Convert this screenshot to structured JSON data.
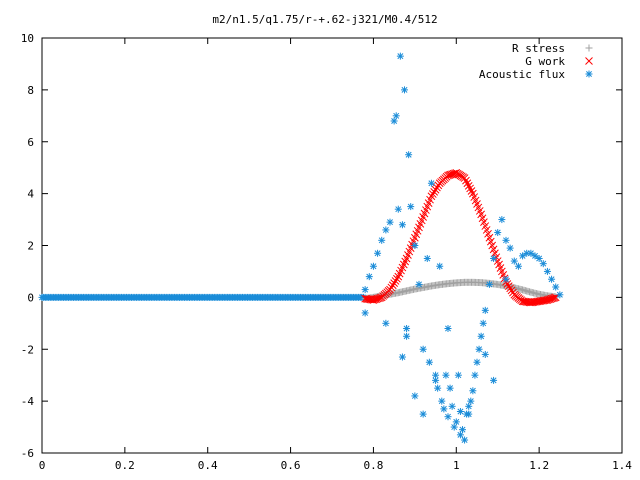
{
  "chart_data": {
    "type": "scatter",
    "title": "m2/n1.5/q1.75/r-+.62-j321/M0.4/512",
    "xlabel": "",
    "ylabel": "",
    "xlim": [
      0,
      1.4
    ],
    "ylim": [
      -6,
      10
    ],
    "xticks": [
      "0",
      "0.2",
      "0.4",
      "0.6",
      "0.8",
      "1",
      "1.2",
      "1.4"
    ],
    "yticks": [
      "-6",
      "-4",
      "-2",
      "0",
      "2",
      "4",
      "6",
      "8",
      "10"
    ],
    "grid": false,
    "legend_position": "top-right",
    "series": [
      {
        "name": "R stress",
        "marker": "plus",
        "color": "#a0a0a0",
        "x": [
          0.78,
          0.8,
          0.82,
          0.84,
          0.86,
          0.88,
          0.9,
          0.92,
          0.94,
          0.96,
          0.98,
          1.0,
          1.02,
          1.04,
          1.06,
          1.08,
          1.1,
          1.12,
          1.14,
          1.16,
          1.18,
          1.2,
          1.22,
          1.24
        ],
        "y": [
          -0.05,
          0.0,
          0.06,
          0.12,
          0.18,
          0.25,
          0.32,
          0.38,
          0.44,
          0.49,
          0.53,
          0.56,
          0.58,
          0.58,
          0.57,
          0.54,
          0.5,
          0.44,
          0.37,
          0.29,
          0.2,
          0.12,
          0.06,
          0.02
        ]
      },
      {
        "name": "G work",
        "marker": "cross",
        "color": "#ff0000",
        "x": [
          0.78,
          0.8,
          0.82,
          0.84,
          0.86,
          0.88,
          0.9,
          0.92,
          0.94,
          0.96,
          0.98,
          1.0,
          1.02,
          1.04,
          1.06,
          1.08,
          1.1,
          1.12,
          1.14,
          1.16,
          1.18,
          1.2,
          1.22,
          1.24
        ],
        "y": [
          -0.05,
          -0.1,
          0.0,
          0.3,
          0.8,
          1.5,
          2.3,
          3.1,
          3.9,
          4.4,
          4.7,
          4.8,
          4.6,
          4.0,
          3.2,
          2.3,
          1.4,
          0.6,
          0.1,
          -0.15,
          -0.2,
          -0.15,
          -0.1,
          0.0
        ]
      },
      {
        "name": "Acoustic flux",
        "marker": "star",
        "color": "#1a8cd8",
        "x": [
          0.78,
          0.78,
          0.79,
          0.8,
          0.81,
          0.82,
          0.83,
          0.84,
          0.85,
          0.855,
          0.86,
          0.865,
          0.87,
          0.875,
          0.88,
          0.885,
          0.89,
          0.9,
          0.91,
          0.92,
          0.93,
          0.935,
          0.94,
          0.95,
          0.955,
          0.96,
          0.965,
          0.97,
          0.975,
          0.98,
          0.985,
          0.99,
          0.995,
          1.0,
          1.005,
          1.01,
          1.015,
          1.02,
          1.025,
          1.03,
          1.035,
          1.04,
          1.045,
          1.05,
          1.055,
          1.06,
          1.065,
          1.07,
          1.08,
          1.09,
          1.1,
          1.11,
          1.12,
          1.13,
          1.14,
          1.15,
          1.16,
          1.17,
          1.18,
          1.19,
          1.2,
          1.21,
          1.22,
          1.23,
          1.24,
          1.25,
          0.83,
          0.87,
          0.88,
          0.9,
          0.92,
          0.95,
          0.98,
          1.01,
          1.03,
          1.07,
          1.09,
          1.12
        ],
        "y": [
          -0.6,
          0.3,
          0.8,
          1.2,
          1.7,
          2.2,
          2.6,
          2.9,
          6.8,
          7.0,
          3.4,
          9.3,
          2.8,
          8.0,
          -1.5,
          5.5,
          3.5,
          2.0,
          0.5,
          -2.0,
          1.5,
          -2.5,
          4.4,
          -3.0,
          -3.5,
          1.2,
          -4.0,
          -4.3,
          -3.0,
          -4.6,
          -3.5,
          -4.2,
          -5.0,
          -4.8,
          -3.0,
          -5.3,
          -5.1,
          -5.5,
          -4.5,
          -4.2,
          -4.0,
          -3.6,
          -3.0,
          -2.5,
          -2.0,
          -1.5,
          -1.0,
          -0.5,
          0.5,
          1.5,
          2.5,
          3.0,
          2.2,
          1.9,
          1.4,
          1.2,
          1.6,
          1.7,
          1.7,
          1.6,
          1.5,
          1.3,
          1.0,
          0.7,
          0.4,
          0.1,
          -1.0,
          -2.3,
          -1.2,
          -3.8,
          -4.5,
          -3.2,
          -1.2,
          -4.4,
          -4.5,
          -2.2,
          -3.2,
          0.7
        ]
      }
    ]
  }
}
